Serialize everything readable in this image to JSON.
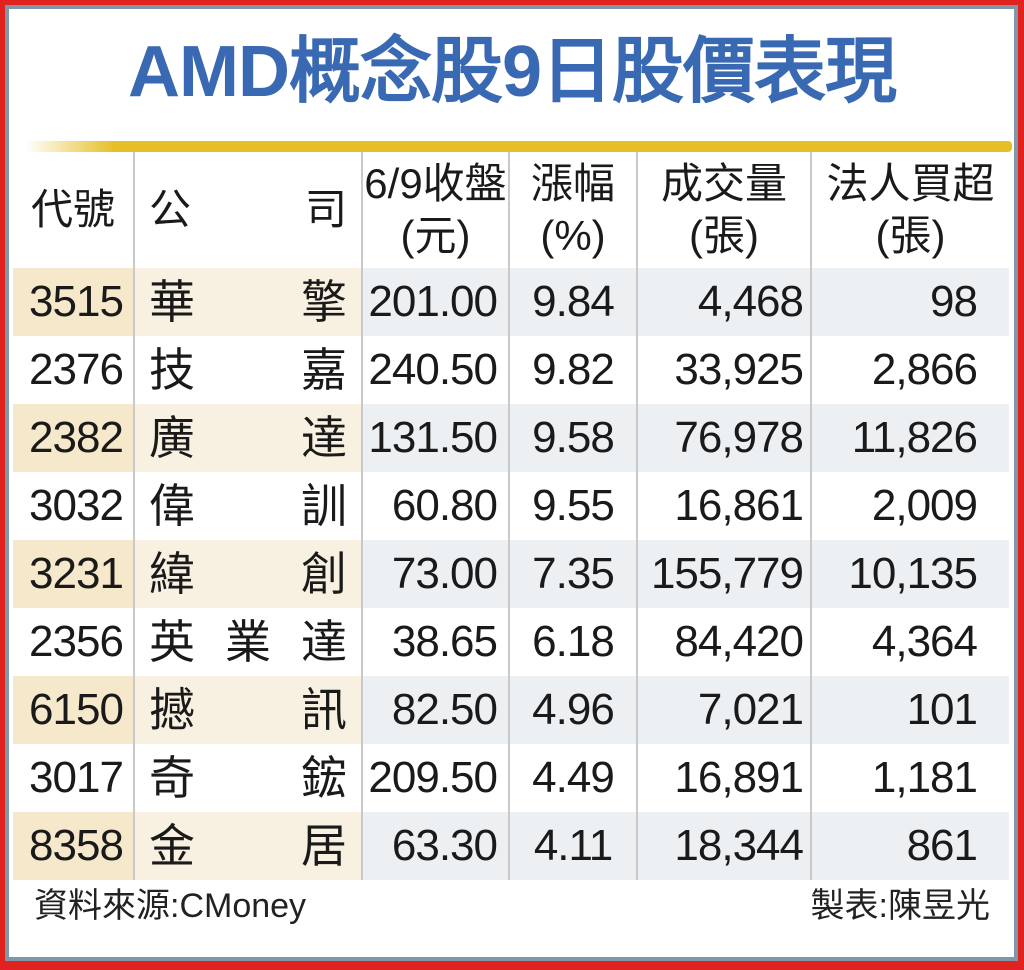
{
  "title": "AMD概念股9日股價表現",
  "colors": {
    "frame_red": "#e0231e",
    "frame_steel": "#7e98a9",
    "title_blue": "#3a69b4",
    "divider_yellow": "#e6bf27",
    "tint_beige": "#f5e8cb",
    "tint_cream": "#f8f1e1",
    "tint_bluegray": "#edf0f3",
    "grid_line": "#c9c9c9",
    "text": "#1a1a1a"
  },
  "table": {
    "headers": {
      "code": "代號",
      "company": "公 司",
      "close1": "6/9收盤",
      "close2": "(元)",
      "change1": "漲幅",
      "change2": "(%)",
      "volume1": "成交量",
      "volume2": "(張)",
      "net1": "法人買超",
      "net2": "(張)"
    },
    "rows": [
      {
        "code": "3515",
        "company": "華 擎",
        "close": "201.00",
        "change": "9.84",
        "volume": "4,468",
        "net_buy": "98"
      },
      {
        "code": "2376",
        "company": "技 嘉",
        "close": "240.50",
        "change": "9.82",
        "volume": "33,925",
        "net_buy": "2,866"
      },
      {
        "code": "2382",
        "company": "廣 達",
        "close": "131.50",
        "change": "9.58",
        "volume": "76,978",
        "net_buy": "11,826"
      },
      {
        "code": "3032",
        "company": "偉 訓",
        "close": "60.80",
        "change": "9.55",
        "volume": "16,861",
        "net_buy": "2,009"
      },
      {
        "code": "3231",
        "company": "緯 創",
        "close": "73.00",
        "change": "7.35",
        "volume": "155,779",
        "net_buy": "10,135"
      },
      {
        "code": "2356",
        "company": "英 業 達",
        "close": "38.65",
        "change": "6.18",
        "volume": "84,420",
        "net_buy": "4,364"
      },
      {
        "code": "6150",
        "company": "撼 訊",
        "close": "82.50",
        "change": "4.96",
        "volume": "7,021",
        "net_buy": "101"
      },
      {
        "code": "3017",
        "company": "奇 鋐",
        "close": "209.50",
        "change": "4.49",
        "volume": "16,891",
        "net_buy": "1,181"
      },
      {
        "code": "8358",
        "company": "金 居",
        "close": "63.30",
        "change": "4.11",
        "volume": "18,344",
        "net_buy": "861"
      }
    ]
  },
  "footer": {
    "source": "資料來源:CMoney",
    "credit": "製表:陳昱光"
  },
  "chart_data": {
    "type": "table",
    "title": "AMD概念股9日股價表現",
    "columns": [
      "代號",
      "公司",
      "6/9收盤(元)",
      "漲幅(%)",
      "成交量(張)",
      "法人買超(張)"
    ],
    "rows": [
      [
        "3515",
        "華擎",
        201.0,
        9.84,
        4468,
        98
      ],
      [
        "2376",
        "技嘉",
        240.5,
        9.82,
        33925,
        2866
      ],
      [
        "2382",
        "廣達",
        131.5,
        9.58,
        76978,
        11826
      ],
      [
        "3032",
        "偉訓",
        60.8,
        9.55,
        16861,
        2009
      ],
      [
        "3231",
        "緯創",
        73.0,
        7.35,
        155779,
        10135
      ],
      [
        "2356",
        "英業達",
        38.65,
        6.18,
        84420,
        4364
      ],
      [
        "6150",
        "撼訊",
        82.5,
        4.96,
        7021,
        101
      ],
      [
        "3017",
        "奇鋐",
        209.5,
        4.49,
        16891,
        1181
      ],
      [
        "8358",
        "金居",
        63.3,
        4.11,
        18344,
        861
      ]
    ],
    "source": "CMoney",
    "credit": "陳昱光"
  }
}
